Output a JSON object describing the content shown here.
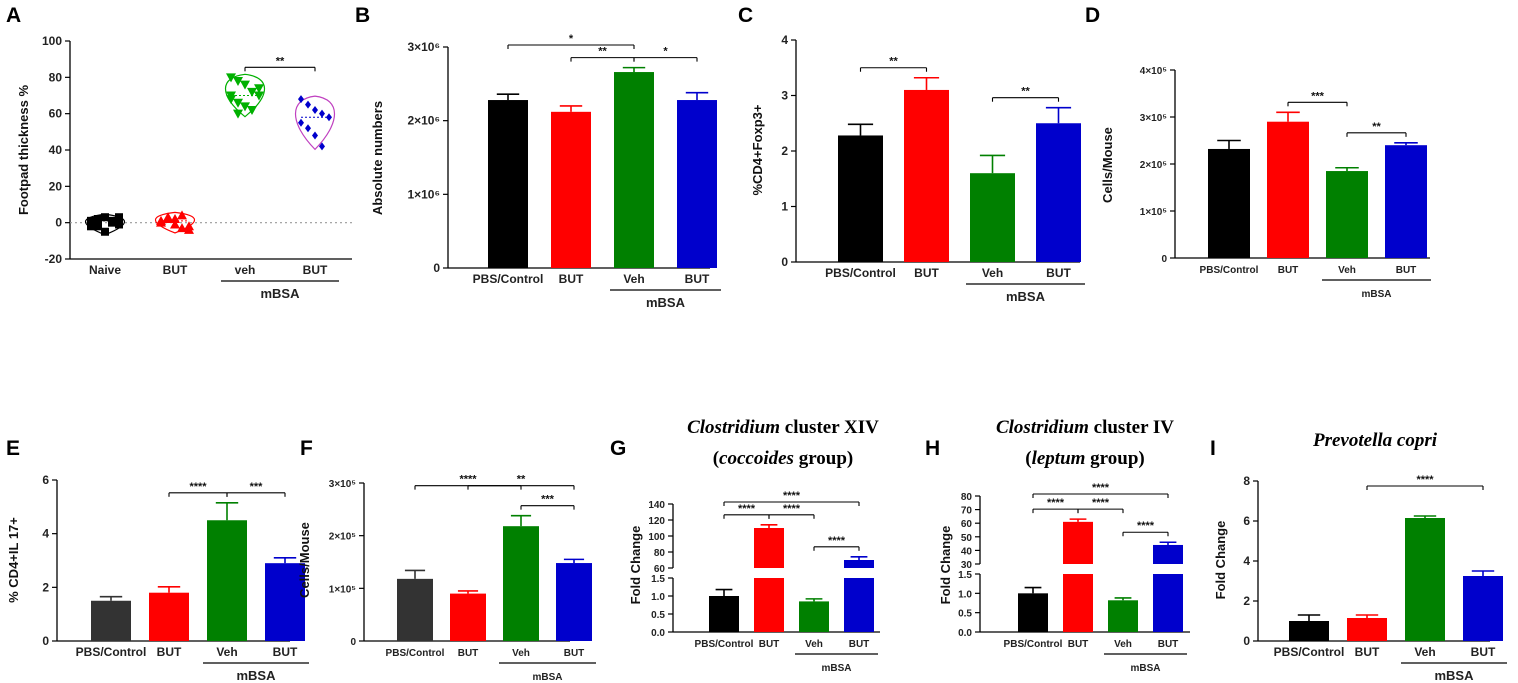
{
  "figure_description_free": true,
  "chart_data": [
    {
      "id": "A",
      "panel_label": "A",
      "type": "scatter",
      "ylabel": "Footpad thickness %",
      "ylim": [
        -20,
        100
      ],
      "yticks": [
        "100",
        "80",
        "60",
        "40",
        "20",
        "0",
        "-20"
      ],
      "ytick_values": [
        100,
        80,
        60,
        40,
        20,
        0,
        -20
      ],
      "categories": [
        "Naive",
        "BUT",
        "veh",
        "BUT"
      ],
      "group_label": "mBSA",
      "group_span": [
        2,
        3
      ],
      "series": [
        {
          "name": "Naive",
          "color": "#000000",
          "marker": "square",
          "points": [
            0,
            2,
            3,
            1,
            -1,
            -2,
            2,
            -5,
            0,
            3,
            1,
            -2
          ]
        },
        {
          "name": "BUT",
          "color": "#ff0000",
          "marker": "triangle-up",
          "points": [
            0,
            3,
            2,
            -3,
            -2,
            1,
            2,
            -1,
            4,
            -4
          ]
        },
        {
          "name": "veh",
          "color": "#00b000",
          "marker": "triangle-down",
          "points": [
            80,
            78,
            76,
            72,
            70,
            68,
            66,
            64,
            62,
            74,
            70,
            60
          ]
        },
        {
          "name": "BUT",
          "color": "#0000cc",
          "marker": "diamond",
          "points": [
            68,
            65,
            62,
            60,
            58,
            55,
            52,
            48,
            42
          ]
        }
      ],
      "significance": [
        {
          "from": 2,
          "to": 3,
          "label": "**"
        }
      ]
    },
    {
      "id": "B",
      "panel_label": "B",
      "type": "bar",
      "ylabel": "Absolute numbers",
      "ylim": [
        0,
        3000000
      ],
      "yticks": [
        "3×10⁶",
        "2×10⁶",
        "1×10⁶",
        "0"
      ],
      "ytick_values": [
        3000000,
        2000000,
        1000000,
        0
      ],
      "categories": [
        "PBS/Control",
        "BUT",
        "Veh",
        "BUT"
      ],
      "values": [
        2280000,
        2120000,
        2660000,
        2280000
      ],
      "errors": [
        80000,
        80000,
        60000,
        100000
      ],
      "colors": [
        "#000000",
        "#ff0000",
        "#008000",
        "#0000cc"
      ],
      "group_label": "mBSA",
      "group_span": [
        2,
        3
      ],
      "significance": [
        {
          "from": 0,
          "to": 2,
          "label": "*"
        },
        {
          "from": 1,
          "to": 2,
          "label": "**"
        },
        {
          "from": 2,
          "to": 3,
          "label": "*"
        }
      ]
    },
    {
      "id": "C",
      "panel_label": "C",
      "type": "bar",
      "ylabel": "%CD4+Foxp3+",
      "ylim": [
        0,
        4
      ],
      "yticks": [
        "4",
        "3",
        "2",
        "1",
        "0"
      ],
      "ytick_values": [
        4,
        3,
        2,
        1,
        0
      ],
      "categories": [
        "PBS/Control",
        "BUT",
        "Veh",
        "BUT"
      ],
      "values": [
        2.28,
        3.1,
        1.6,
        2.5
      ],
      "errors": [
        0.2,
        0.22,
        0.32,
        0.28
      ],
      "colors": [
        "#000000",
        "#ff0000",
        "#008000",
        "#0000cc"
      ],
      "group_label": "mBSA",
      "group_span": [
        2,
        3
      ],
      "significance": [
        {
          "from": 0,
          "to": 1,
          "label": "**"
        },
        {
          "from": 2,
          "to": 3,
          "label": "**"
        }
      ]
    },
    {
      "id": "D",
      "panel_label": "D",
      "type": "bar",
      "ylabel": "Cells/Mouse",
      "ylim": [
        0,
        400000
      ],
      "yticks": [
        "4×10⁵",
        "3×10⁵",
        "2×10⁵",
        "1×10⁵",
        "0"
      ],
      "ytick_values": [
        400000,
        300000,
        200000,
        100000,
        0
      ],
      "categories": [
        "PBS/Control",
        "BUT",
        "Veh",
        "BUT"
      ],
      "values": [
        232000,
        290000,
        185000,
        240000
      ],
      "errors": [
        18000,
        20000,
        7000,
        5000
      ],
      "colors": [
        "#000000",
        "#ff0000",
        "#008000",
        "#0000cc"
      ],
      "group_label": "mBSA",
      "group_span": [
        2,
        3
      ],
      "significance": [
        {
          "from": 1,
          "to": 2,
          "label": "***"
        },
        {
          "from": 2,
          "to": 3,
          "label": "**"
        }
      ]
    },
    {
      "id": "E",
      "panel_label": "E",
      "type": "bar",
      "ylabel": "% CD4+IL 17+",
      "ylim": [
        0,
        6
      ],
      "yticks": [
        "6",
        "4",
        "2",
        "0"
      ],
      "ytick_values": [
        6,
        4,
        2,
        0
      ],
      "categories": [
        "PBS/Control",
        "BUT",
        "Veh",
        "BUT"
      ],
      "values": [
        1.5,
        1.8,
        4.5,
        2.9
      ],
      "errors": [
        0.15,
        0.22,
        0.65,
        0.2
      ],
      "colors": [
        "#333333",
        "#ff0000",
        "#008000",
        "#0000cc"
      ],
      "group_label": "mBSA",
      "group_span": [
        2,
        3
      ],
      "significance": [
        {
          "from": 1,
          "to": 2,
          "label": "****"
        },
        {
          "from": 2,
          "to": 3,
          "label": "***"
        }
      ]
    },
    {
      "id": "F",
      "panel_label": "F",
      "type": "bar",
      "ylabel": "Cells/Mouse",
      "ylim": [
        0,
        300000
      ],
      "yticks": [
        "3×10⁵",
        "2×10⁵",
        "1×10⁵",
        "0"
      ],
      "ytick_values": [
        300000,
        200000,
        100000,
        0
      ],
      "categories": [
        "PBS/Control",
        "BUT",
        "Veh",
        "BUT"
      ],
      "values": [
        118000,
        90000,
        218000,
        148000
      ],
      "errors": [
        16000,
        5000,
        20000,
        7000
      ],
      "colors": [
        "#333333",
        "#ff0000",
        "#008000",
        "#0000cc"
      ],
      "group_label": "mBSA",
      "group_span": [
        2,
        3
      ],
      "significance": [
        {
          "from": 1,
          "to": 3,
          "label": "**"
        },
        {
          "from": 0,
          "to": 2,
          "label": "****"
        },
        {
          "from": 2,
          "to": 3,
          "label": "***"
        }
      ]
    },
    {
      "id": "G",
      "panel_label": "G",
      "type": "bar",
      "title_lines": [
        [
          {
            "text": "Clostridium",
            "italic": true
          },
          {
            "text": " cluster XIV",
            "italic": false
          }
        ],
        [
          {
            "text": "(",
            "italic": false
          },
          {
            "text": "coccoides",
            "italic": true
          },
          {
            "text": " group)",
            "italic": false
          }
        ]
      ],
      "ylabel": "Fold Change",
      "axis_break": true,
      "lower_range": [
        0,
        1.5
      ],
      "upper_range": [
        60,
        140
      ],
      "yticks_lower": [
        "1.5",
        "1.0",
        "0.5",
        "0.0"
      ],
      "ytick_values_lower": [
        1.5,
        1.0,
        0.5,
        0.0
      ],
      "yticks_upper": [
        "140",
        "120",
        "100",
        "80",
        "60"
      ],
      "ytick_values_upper": [
        140,
        120,
        100,
        80,
        60
      ],
      "categories": [
        "PBS/Control",
        "BUT",
        "Veh",
        "BUT"
      ],
      "values": [
        1.0,
        110,
        0.85,
        70
      ],
      "errors": [
        0.18,
        4,
        0.07,
        4
      ],
      "colors": [
        "#000000",
        "#ff0000",
        "#008000",
        "#0000cc"
      ],
      "group_label": "mBSA",
      "group_span": [
        2,
        3
      ],
      "significance": [
        {
          "from": 0,
          "to": 3,
          "label": "****"
        },
        {
          "from": 0,
          "to": 1,
          "label": "****"
        },
        {
          "from": 1,
          "to": 2,
          "label": "****"
        },
        {
          "from": 2,
          "to": 3,
          "label": "****"
        }
      ]
    },
    {
      "id": "H",
      "panel_label": "H",
      "type": "bar",
      "title_lines": [
        [
          {
            "text": "Clostridium",
            "italic": true
          },
          {
            "text": " cluster IV",
            "italic": false
          }
        ],
        [
          {
            "text": "(",
            "italic": false
          },
          {
            "text": "leptum",
            "italic": true
          },
          {
            "text": " group)",
            "italic": false
          }
        ]
      ],
      "ylabel": "Fold Change",
      "axis_break": true,
      "lower_range": [
        0,
        1.5
      ],
      "upper_range": [
        30,
        80
      ],
      "yticks_lower": [
        "1.5",
        "1.0",
        "0.5",
        "0.0"
      ],
      "ytick_values_lower": [
        1.5,
        1.0,
        0.5,
        0.0
      ],
      "yticks_upper": [
        "80",
        "70",
        "60",
        "50",
        "40",
        "30"
      ],
      "ytick_values_upper": [
        80,
        70,
        60,
        50,
        40,
        30
      ],
      "categories": [
        "PBS/Control",
        "BUT",
        "Veh",
        "BUT"
      ],
      "values": [
        1.0,
        61,
        0.82,
        44
      ],
      "errors": [
        0.15,
        2,
        0.06,
        2
      ],
      "colors": [
        "#000000",
        "#ff0000",
        "#008000",
        "#0000cc"
      ],
      "group_label": "mBSA",
      "group_span": [
        2,
        3
      ],
      "significance": [
        {
          "from": 0,
          "to": 3,
          "label": "****"
        },
        {
          "from": 0,
          "to": 1,
          "label": "****"
        },
        {
          "from": 1,
          "to": 2,
          "label": "****"
        },
        {
          "from": 2,
          "to": 3,
          "label": "****"
        }
      ]
    },
    {
      "id": "I",
      "panel_label": "I",
      "type": "bar",
      "title_lines": [
        [
          {
            "text": "Prevotella copri",
            "italic": true
          }
        ]
      ],
      "ylabel": "Fold Change",
      "ylim": [
        0,
        8
      ],
      "yticks": [
        "8",
        "6",
        "4",
        "2",
        "0"
      ],
      "ytick_values": [
        8,
        6,
        4,
        2,
        0
      ],
      "categories": [
        "PBS/Control",
        "BUT",
        "Veh",
        "BUT"
      ],
      "values": [
        1.0,
        1.15,
        6.15,
        3.25
      ],
      "errors": [
        0.3,
        0.15,
        0.1,
        0.25
      ],
      "colors": [
        "#000000",
        "#ff0000",
        "#008000",
        "#0000cc"
      ],
      "group_label": "mBSA",
      "group_span": [
        2,
        3
      ],
      "significance": [
        {
          "from": 1,
          "to": 3,
          "label": "****"
        }
      ]
    }
  ]
}
